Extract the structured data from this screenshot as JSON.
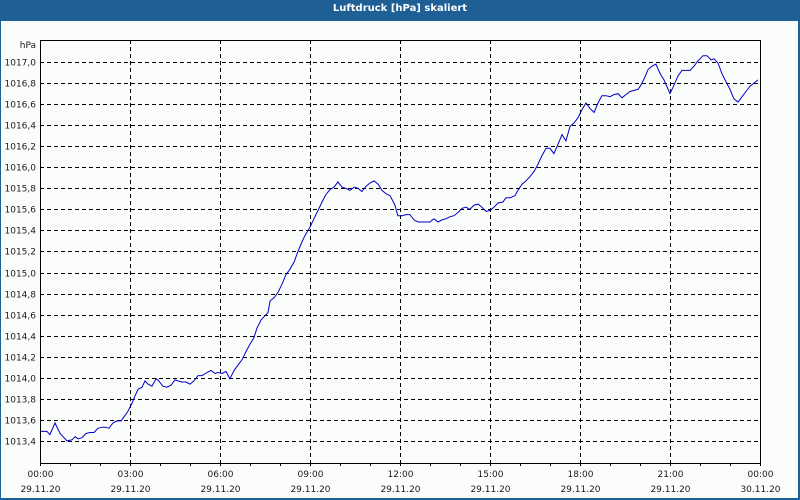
{
  "window": {
    "title": "Luftdruck [hPa] skaliert"
  },
  "colors": {
    "title_bar": "#1e6096",
    "background": "#fbfdfb",
    "line": "#0000c8",
    "grid": "#000000",
    "text": "#1a1a1a"
  },
  "chart_data": {
    "type": "line",
    "title": "Luftdruck [hPa] skaliert",
    "xlabel": "",
    "ylabel": "hPa",
    "ylim": [
      1013.2,
      1017.2
    ],
    "grid": true,
    "legend": null,
    "y_ticks": [
      "1017,0",
      "1016,8",
      "1016,6",
      "1016,4",
      "1016,2",
      "1016,0",
      "1015,8",
      "1015,6",
      "1015,4",
      "1015,2",
      "1015,0",
      "1014,8",
      "1014,6",
      "1014,4",
      "1014,2",
      "1014,0",
      "1013,8",
      "1013,6",
      "1013,4"
    ],
    "x_ticks": [
      {
        "time": "00:00",
        "date": "29.11.20"
      },
      {
        "time": "03:00",
        "date": "29.11.20"
      },
      {
        "time": "06:00",
        "date": "29.11.20"
      },
      {
        "time": "09:00",
        "date": "29.11.20"
      },
      {
        "time": "12:00",
        "date": "29.11.20"
      },
      {
        "time": "15:00",
        "date": "29.11.20"
      },
      {
        "time": "18:00",
        "date": "29.11.20"
      },
      {
        "time": "21:00",
        "date": "29.11.20"
      },
      {
        "time": "00:00",
        "date": "30.11.20"
      }
    ],
    "x_hours": [
      0.0,
      0.23,
      0.33,
      0.5,
      0.67,
      0.77,
      0.9,
      1.07,
      1.17,
      1.27,
      1.4,
      1.53,
      1.67,
      1.8,
      1.93,
      2.07,
      2.2,
      2.3,
      2.43,
      2.57,
      2.7,
      2.83,
      2.93,
      3.07,
      3.17,
      3.27,
      3.4,
      3.5,
      3.6,
      3.73,
      3.87,
      3.93,
      4.1,
      4.23,
      4.37,
      4.5,
      4.6,
      4.73,
      4.87,
      5.0,
      5.13,
      5.27,
      5.4,
      5.57,
      5.7,
      5.83,
      5.93,
      6.07,
      6.2,
      6.33,
      6.47,
      6.6,
      6.73,
      6.87,
      7.0,
      7.13,
      7.23,
      7.37,
      7.5,
      7.6,
      7.67,
      7.8,
      7.93,
      8.07,
      8.2,
      8.33,
      8.47,
      8.6,
      8.73,
      8.83,
      9.0,
      9.13,
      9.27,
      9.4,
      9.53,
      9.67,
      9.8,
      9.93,
      10.07,
      10.2,
      10.33,
      10.47,
      10.6,
      10.73,
      10.87,
      11.0,
      11.13,
      11.27,
      11.4,
      11.53,
      11.67,
      11.83,
      11.93,
      12.07,
      12.2,
      12.33,
      12.47,
      12.6,
      12.73,
      12.87,
      13.0,
      13.13,
      13.27,
      13.4,
      13.53,
      13.67,
      13.8,
      13.93,
      14.07,
      14.2,
      14.33,
      14.47,
      14.6,
      14.73,
      14.87,
      15.0,
      15.13,
      15.27,
      15.43,
      15.53,
      15.67,
      15.83,
      15.93,
      16.07,
      16.2,
      16.33,
      16.47,
      16.6,
      16.73,
      16.87,
      17.0,
      17.13,
      17.27,
      17.4,
      17.53,
      17.67,
      17.8,
      17.93,
      18.07,
      18.2,
      18.33,
      18.47,
      18.6,
      18.73,
      18.87,
      19.0,
      19.13,
      19.27,
      19.4,
      19.53,
      19.67,
      19.8,
      19.93,
      20.03,
      20.17,
      20.27,
      20.4,
      20.53,
      20.67,
      20.8,
      21.0,
      21.1,
      21.27,
      21.4,
      21.53,
      21.67,
      21.8,
      21.93,
      22.1,
      22.23,
      22.37,
      22.47,
      22.6,
      22.73,
      22.87,
      23.0,
      23.13,
      23.27,
      23.4,
      23.53,
      23.67,
      23.8,
      23.93
    ],
    "values": [
      1013.49,
      1013.49,
      1013.46,
      1013.57,
      1013.47,
      1013.44,
      1013.4,
      1013.41,
      1013.44,
      1013.42,
      1013.43,
      1013.47,
      1013.48,
      1013.48,
      1013.52,
      1013.53,
      1013.53,
      1013.52,
      1013.57,
      1013.59,
      1013.59,
      1013.64,
      1013.68,
      1013.76,
      1013.83,
      1013.89,
      1013.91,
      1013.97,
      1013.94,
      1013.92,
      1013.99,
      1013.98,
      1013.92,
      1013.91,
      1013.93,
      1013.98,
      1013.97,
      1013.96,
      1013.96,
      1013.94,
      1013.97,
      1014.02,
      1014.02,
      1014.05,
      1014.07,
      1014.04,
      1014.05,
      1014.04,
      1014.06,
      1013.99,
      1014.07,
      1014.12,
      1014.17,
      1014.25,
      1014.32,
      1014.38,
      1014.47,
      1014.55,
      1014.59,
      1014.62,
      1014.73,
      1014.76,
      1014.81,
      1014.89,
      1014.98,
      1015.03,
      1015.1,
      1015.2,
      1015.29,
      1015.35,
      1015.43,
      1015.51,
      1015.59,
      1015.67,
      1015.74,
      1015.79,
      1015.81,
      1015.86,
      1015.81,
      1015.8,
      1015.78,
      1015.81,
      1015.8,
      1015.77,
      1015.82,
      1015.85,
      1015.87,
      1015.84,
      1015.78,
      1015.75,
      1015.73,
      1015.64,
      1015.54,
      1015.54,
      1015.55,
      1015.55,
      1015.5,
      1015.48,
      1015.48,
      1015.48,
      1015.48,
      1015.51,
      1015.48,
      1015.5,
      1015.51,
      1015.53,
      1015.54,
      1015.57,
      1015.61,
      1015.62,
      1015.6,
      1015.64,
      1015.65,
      1015.62,
      1015.58,
      1015.59,
      1015.62,
      1015.66,
      1015.67,
      1015.71,
      1015.71,
      1015.73,
      1015.78,
      1015.84,
      1015.87,
      1015.91,
      1015.96,
      1016.03,
      1016.11,
      1016.18,
      1016.18,
      1016.13,
      1016.22,
      1016.31,
      1016.25,
      1016.39,
      1016.42,
      1016.47,
      1016.55,
      1016.61,
      1016.56,
      1016.52,
      1016.61,
      1016.68,
      1016.68,
      1016.67,
      1016.69,
      1016.7,
      1016.66,
      1016.69,
      1016.72,
      1016.73,
      1016.74,
      1016.78,
      1016.86,
      1016.93,
      1016.96,
      1016.98,
      1016.89,
      1016.83,
      1016.7,
      1016.76,
      1016.87,
      1016.92,
      1016.92,
      1016.92,
      1016.96,
      1017.01,
      1017.06,
      1017.06,
      1017.02,
      1017.03,
      1016.99,
      1016.89,
      1016.81,
      1016.74,
      1016.65,
      1016.62,
      1016.67,
      1016.72,
      1016.77,
      1016.8,
      1016.83
    ]
  }
}
